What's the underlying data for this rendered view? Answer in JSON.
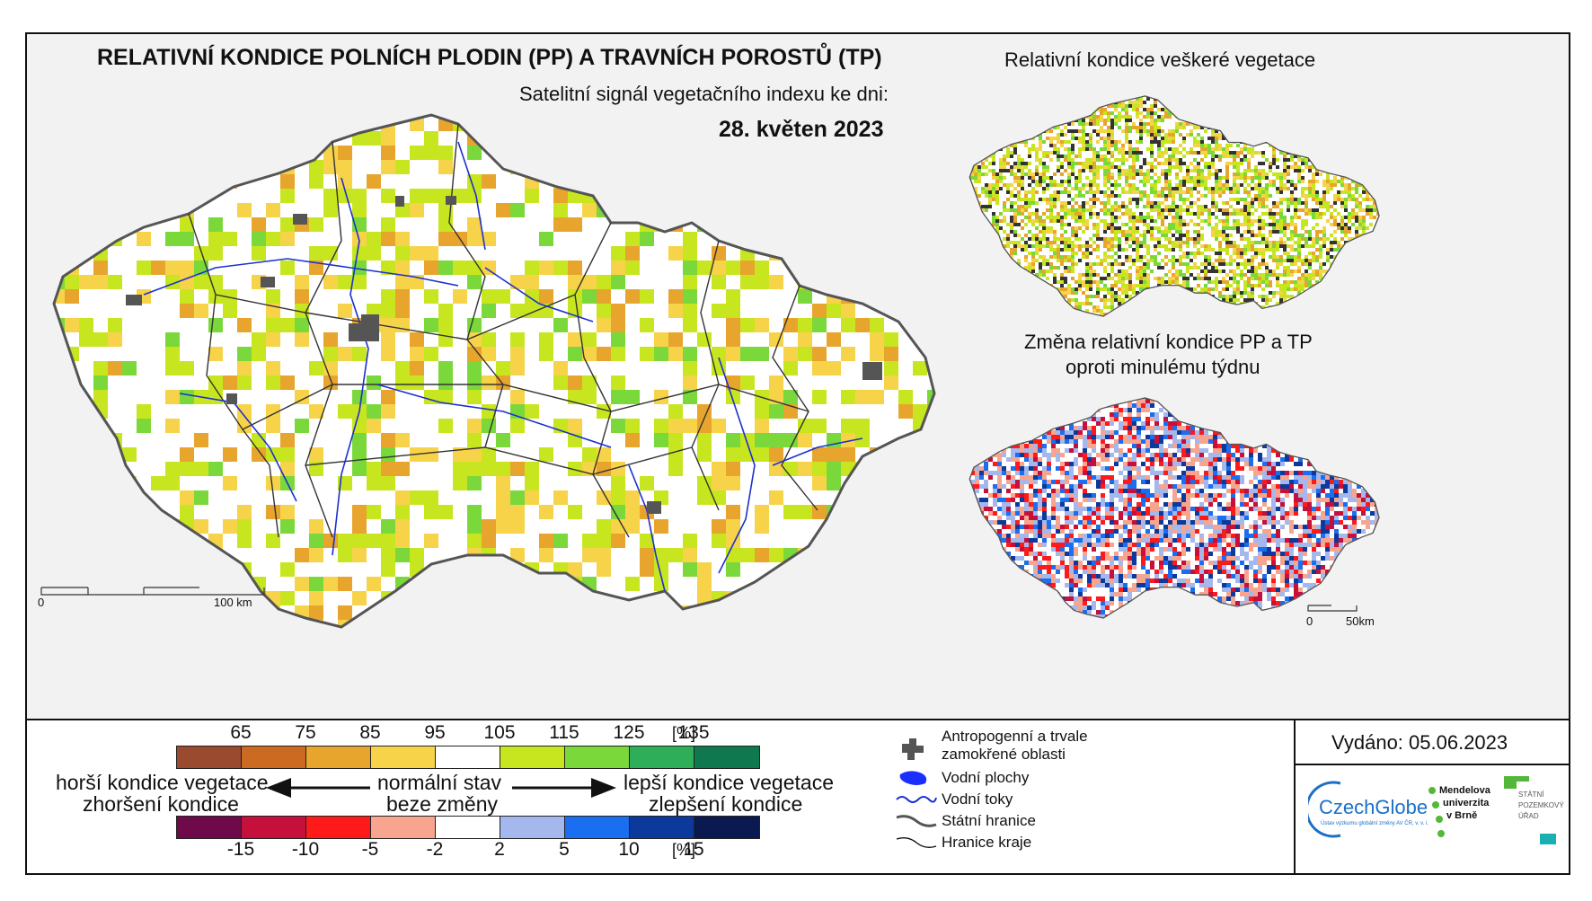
{
  "main_map": {
    "title": "RELATIVNÍ KONDICE POLNÍCH PLODIN (PP) A TRAVNÍCH POROSTŮ (TP)",
    "subtitle": "Satelitní signál vegetačního indexu ke dni:",
    "date": "28. květen 2023",
    "scalebar": {
      "start": "0",
      "end": "100 km"
    }
  },
  "inset_vegetation": {
    "title": "Relativní kondice veškeré vegetace"
  },
  "inset_change": {
    "title_line1": "Změna relativní kondice PP a TP",
    "title_line2": "oproti minulému týdnu",
    "scalebar": {
      "start": "0",
      "end": "50km"
    }
  },
  "legend": {
    "condition_scale": {
      "ticks": [
        "65",
        "75",
        "85",
        "95",
        "105",
        "115",
        "125",
        "135"
      ],
      "unit": "[%]",
      "colors": [
        "#9a4a2e",
        "#cc6a22",
        "#e7a52d",
        "#f7d34a",
        "#ffffff",
        "#c8e61f",
        "#7bd83a",
        "#2fae5a",
        "#10784f"
      ]
    },
    "change_scale": {
      "ticks": [
        "-15",
        "-10",
        "-5",
        "-2",
        "2",
        "5",
        "10",
        "15"
      ],
      "unit": "[%]",
      "colors": [
        "#6e0a4a",
        "#c4103a",
        "#ff1a1a",
        "#f7a58e",
        "#ffffff",
        "#a4b8ee",
        "#1a6ef0",
        "#0c3a9c",
        "#0a1a50"
      ]
    },
    "worse_line1": "horší kondice vegetace",
    "worse_line2": "zhoršení kondice",
    "normal_line1": "normální stav",
    "normal_line2": "beze změny",
    "better_line1": "lepší kondice vegetace",
    "better_line2": "zlepšení kondice",
    "symbols": {
      "anthropogenic_line1": "Antropogenní a trvale",
      "anthropogenic_line2": "zamokřené oblasti",
      "water_bodies": "Vodní plochy",
      "watercourses": "Vodní toky",
      "state_border": "Státní hranice",
      "region_border": "Hranice kraje"
    }
  },
  "issued": "Vydáno: 05.06.2023",
  "logos": {
    "czechglobe": "CzechGlobe",
    "czechglobe_sub": "Ústav výzkumu globální změny AV ČR, v. v. i.",
    "mendel_line1": "Mendelova",
    "mendel_line2": "univerzita",
    "mendel_line3": "v Brně",
    "spu_line1": "STÁTNÍ",
    "spu_line2": "POZEMKOVÝ",
    "spu_line3": "ÚŘAD"
  }
}
